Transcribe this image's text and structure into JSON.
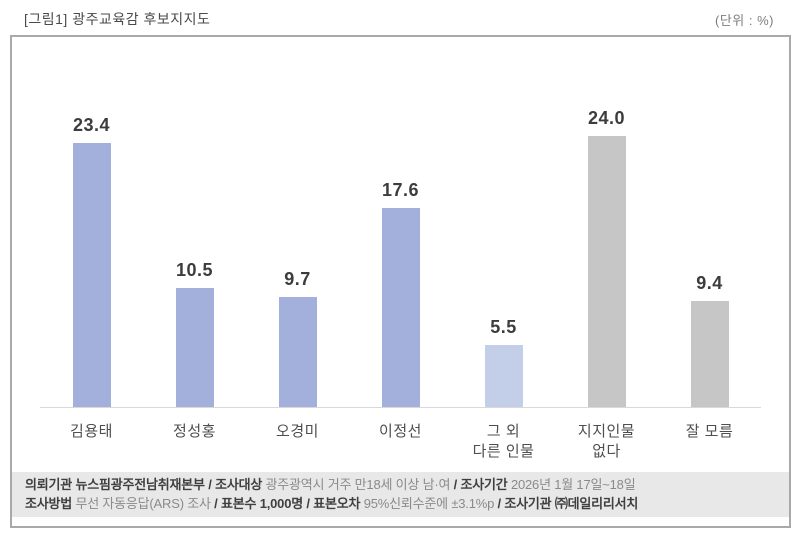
{
  "header": {
    "title": "[그림1] 광주교육감 후보지지도",
    "unit": "(단위 : %)"
  },
  "chart_data": {
    "type": "bar",
    "title": "광주교육감 후보지지도",
    "unit": "%",
    "categories": [
      "김용태",
      "정성홍",
      "오경미",
      "이정선",
      "그 외\n다른 인물",
      "지지인물\n없다",
      "잘 모름"
    ],
    "values": [
      23.4,
      10.5,
      9.7,
      17.6,
      5.5,
      24.0,
      9.4
    ],
    "value_labels": [
      "23.4",
      "10.5",
      "9.7",
      "17.6",
      "5.5",
      "24.0",
      "9.4"
    ],
    "bar_colors": [
      "#a2b0db",
      "#a2b0db",
      "#a2b0db",
      "#a2b0db",
      "#c3cee9",
      "#c6c6c6",
      "#c6c6c6"
    ],
    "ylim": [
      0,
      30
    ],
    "grid": false,
    "legend": false,
    "xlabel": "",
    "ylabel": ""
  },
  "footer": {
    "lines": [
      {
        "segments": [
          {
            "text": "의뢰기관 뉴스핌광주전남취재본부",
            "bold": true
          },
          {
            "text": " / ",
            "bold": true
          },
          {
            "text": "조사대상",
            "bold": true
          },
          {
            "text": " 광주광역시 거주 만18세 이상 남·여 ",
            "bold": false
          },
          {
            "text": "/ ",
            "bold": true
          },
          {
            "text": "조사기간",
            "bold": true
          },
          {
            "text": " 2026년 1월 17일~18일",
            "bold": false
          }
        ]
      },
      {
        "segments": [
          {
            "text": "조사방법",
            "bold": true
          },
          {
            "text": " 무선 자동응답(ARS) 조사 ",
            "bold": false
          },
          {
            "text": "/ ",
            "bold": true
          },
          {
            "text": "표본수 1,000명",
            "bold": true
          },
          {
            "text": " / ",
            "bold": true
          },
          {
            "text": "표본오차",
            "bold": true
          },
          {
            "text": " 95%신뢰수준에 ±3.1%p ",
            "bold": false
          },
          {
            "text": "/ ",
            "bold": true
          },
          {
            "text": "조사기관 ㈜데일리리서치",
            "bold": true
          }
        ]
      }
    ]
  }
}
